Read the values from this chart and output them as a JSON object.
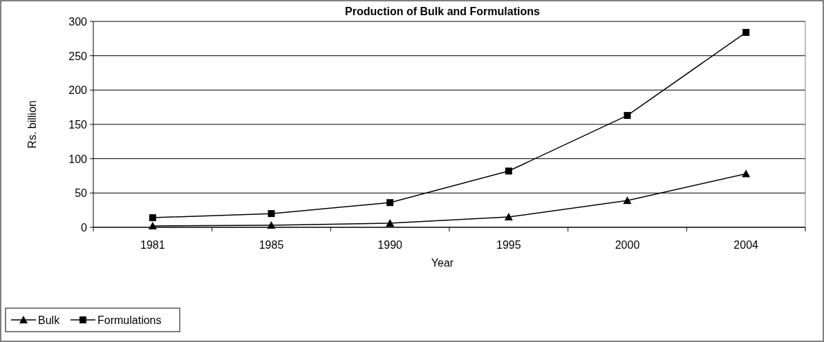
{
  "chart_data": {
    "type": "line",
    "title": "Production of Bulk and Formulations",
    "xlabel": "Year",
    "ylabel": "Rs. billion",
    "categories": [
      "1981",
      "1985",
      "1990",
      "1995",
      "2000",
      "2004"
    ],
    "series": [
      {
        "name": "Bulk",
        "color": "#000000",
        "marker": "triangle",
        "values": [
          2,
          3,
          6,
          15,
          39,
          78
        ]
      },
      {
        "name": "Formulations",
        "color": "#000000",
        "marker": "square",
        "values": [
          14,
          20,
          36,
          82,
          163,
          284
        ]
      }
    ],
    "ylim": [
      0,
      300
    ],
    "yticks": [
      0,
      50,
      100,
      150,
      200,
      250,
      300
    ],
    "grid": "y",
    "legend": "bottom left",
    "line_style": "solid"
  }
}
